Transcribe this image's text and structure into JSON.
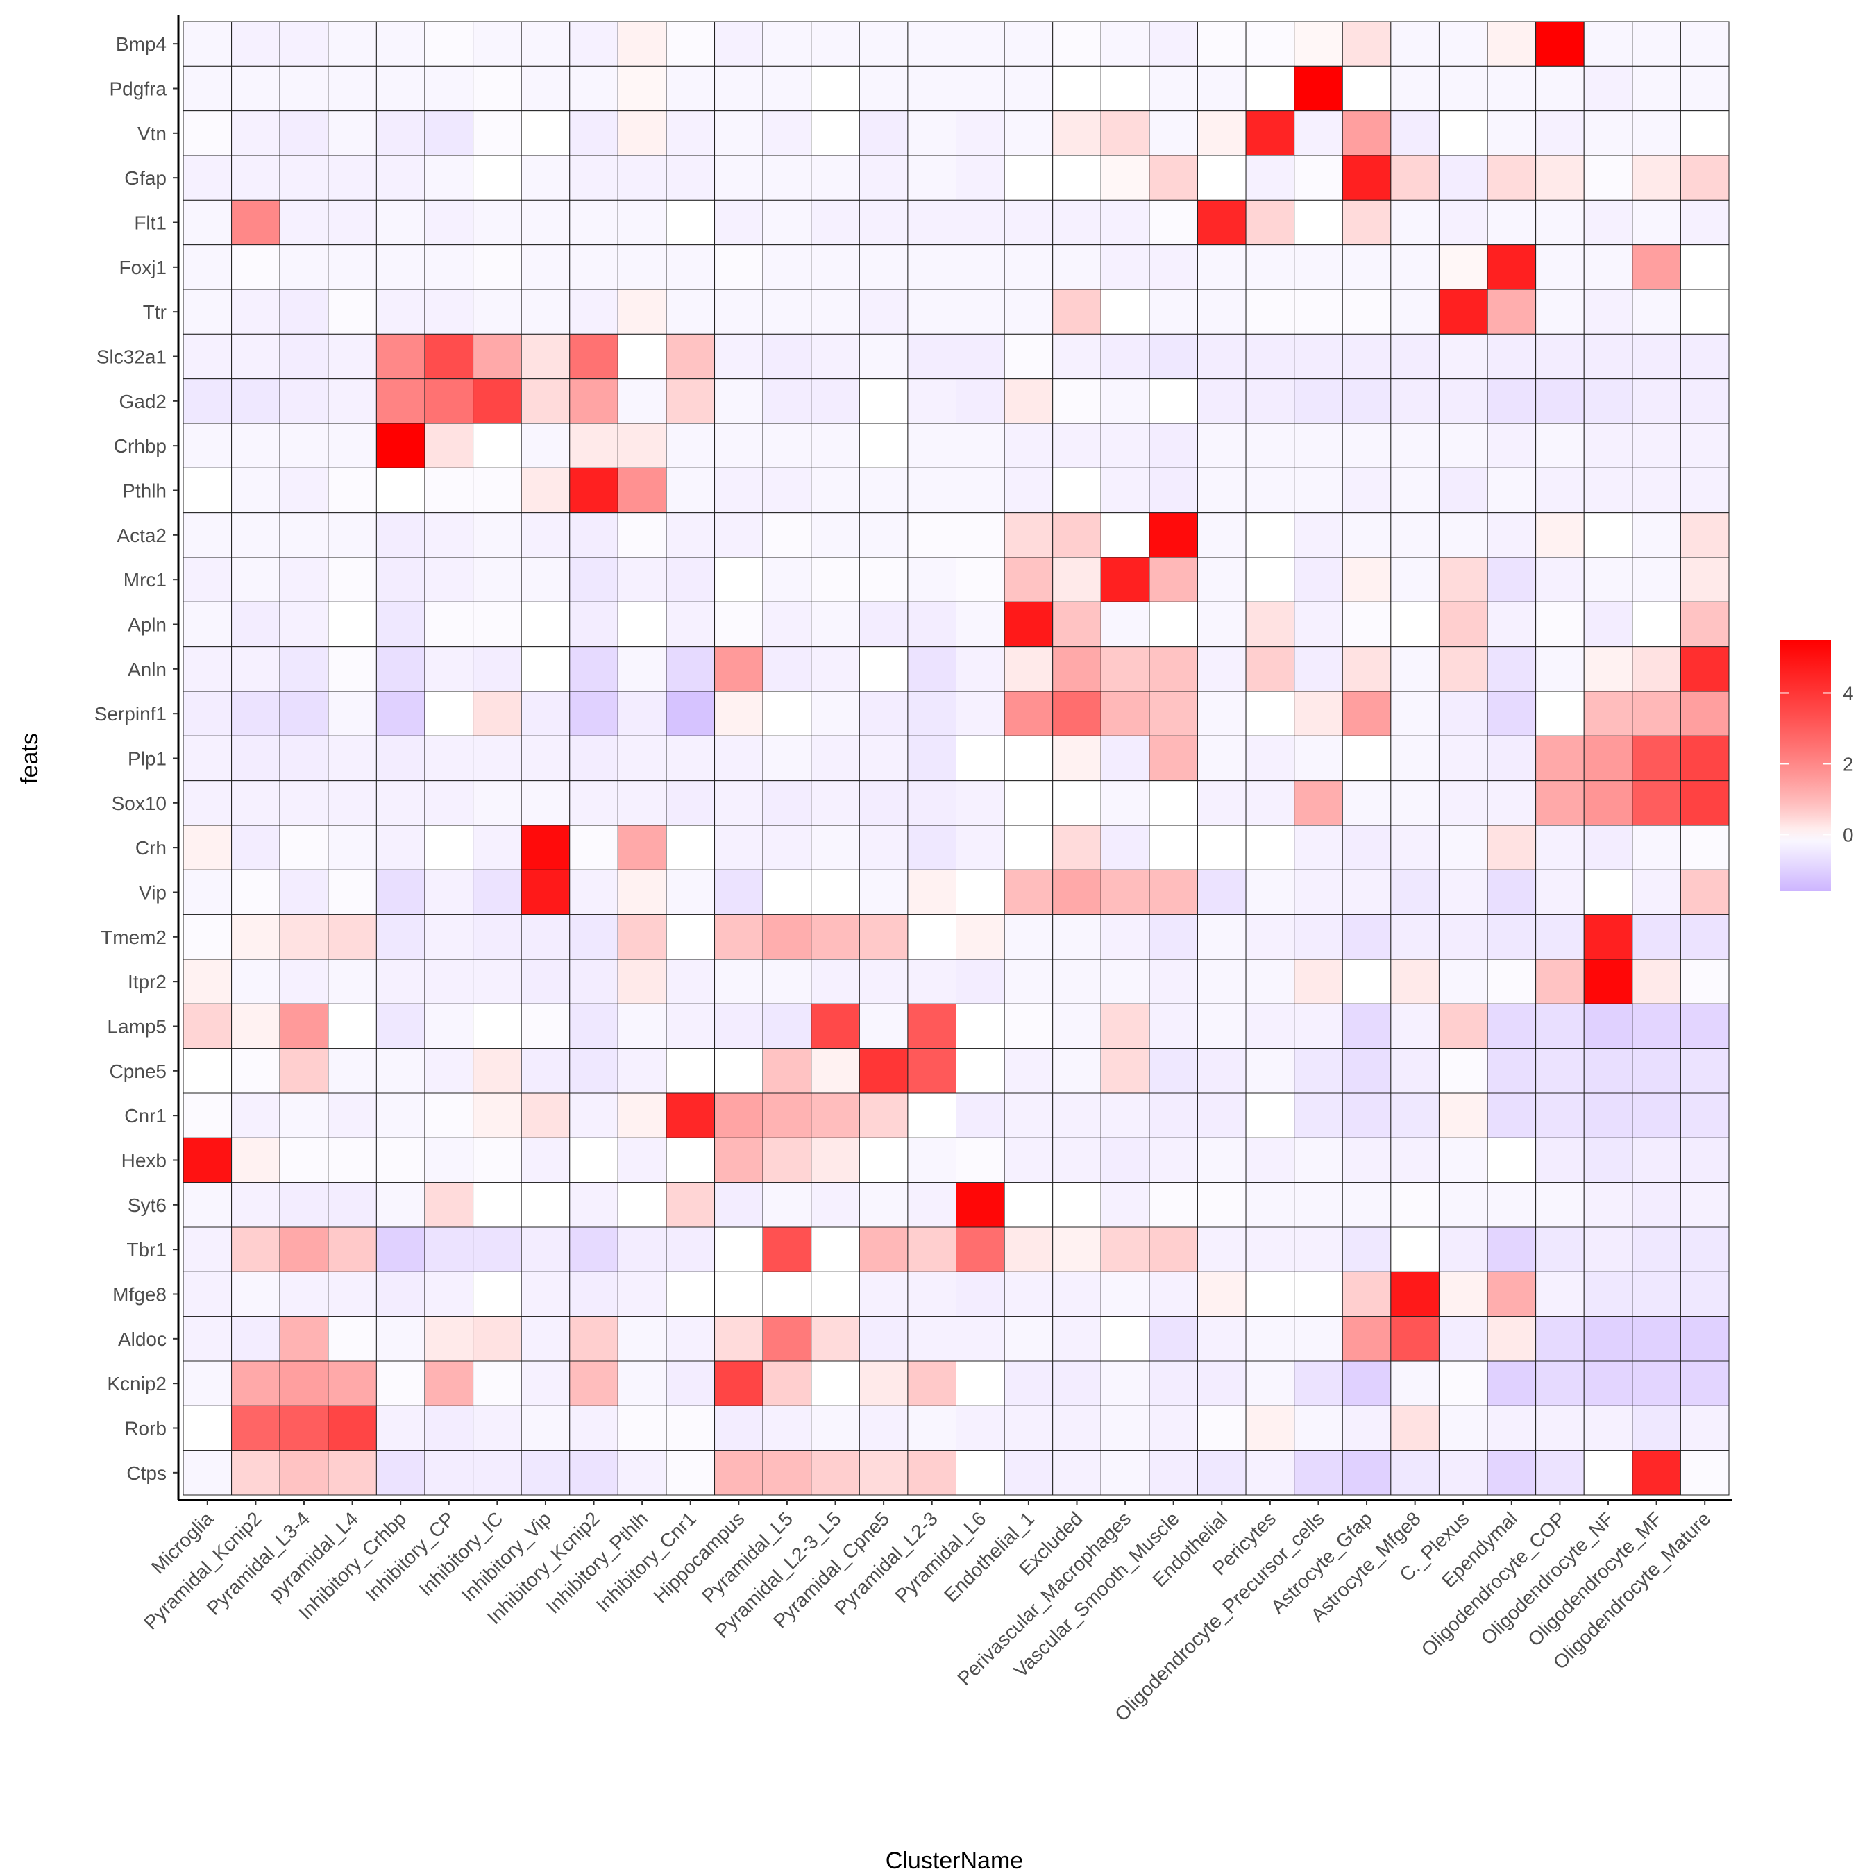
{
  "chart_data": {
    "type": "heatmap",
    "xlabel": "ClusterName",
    "ylabel": "feats",
    "colorbar": {
      "ticks": [
        0,
        2,
        4
      ],
      "range": [
        -1.6,
        5.5
      ],
      "low_color": "#CDB5FF",
      "mid_color": "#FFFFFF",
      "high_color": "#FF0000"
    },
    "x": [
      "Microglia",
      "Pyramidal_Kcnip2",
      "Pyramidal_L3-4",
      "pyramidal_L4",
      "Inhibitory_Crhbp",
      "Inhibitory_CP",
      "Inhibitory_IC",
      "Inhibitory_Vip",
      "Inhibitory_Kcnip2",
      "Inhibitory_Pthlh",
      "Inhibitory_Cnr1",
      "Hippocampus",
      "Pyramidal_L5",
      "Pyramidal_L2-3_L5",
      "Pyramidal_Cpne5",
      "Pyramidal_L2-3",
      "Pyramidal_L6",
      "Endothelial_1",
      "Excluded",
      "Perivascular_Macrophages",
      "Vascular_Smooth_Muscle",
      "Endothelial",
      "Pericytes",
      "Oligodendrocyte_Precursor_cells",
      "Astrocyte_Gfap",
      "Astrocyte_Mfge8",
      "C._Plexus",
      "Ependymal",
      "Oligodendrocyte_COP",
      "Oligodendrocyte_NF",
      "Oligodendrocyte_MF",
      "Oligodendrocyte_Mature"
    ],
    "y": [
      "Bmp4",
      "Pdgfra",
      "Vtn",
      "Gfap",
      "Flt1",
      "Foxj1",
      "Ttr",
      "Slc32a1",
      "Gad2",
      "Crhbp",
      "Pthlh",
      "Acta2",
      "Mrc1",
      "Apln",
      "Anln",
      "Serpinf1",
      "Plp1",
      "Sox10",
      "Crh",
      "Vip",
      "Tmem2",
      "Itpr2",
      "Lamp5",
      "Cpne5",
      "Cnr1",
      "Hexb",
      "Syt6",
      "Tbr1",
      "Mfge8",
      "Aldoc",
      "Kcnip2",
      "Rorb",
      "Ctps"
    ],
    "values": [
      [
        -0.2,
        -0.3,
        -0.3,
        -0.2,
        -0.2,
        -0.1,
        -0.2,
        -0.2,
        -0.3,
        0.1,
        -0.1,
        -0.3,
        -0.2,
        -0.2,
        -0.2,
        -0.2,
        -0.2,
        -0.2,
        -0.1,
        -0.2,
        -0.3,
        -0.1,
        -0.1,
        0.05,
        0.3,
        -0.2,
        -0.2,
        0.1,
        5.5,
        -0.2,
        -0.2,
        -0.2
      ],
      [
        -0.2,
        -0.2,
        -0.2,
        -0.2,
        -0.2,
        -0.2,
        -0.1,
        -0.2,
        -0.2,
        0.05,
        -0.2,
        -0.2,
        -0.2,
        0,
        -0.2,
        -0.2,
        -0.2,
        -0.2,
        0,
        0,
        -0.2,
        -0.2,
        0,
        5.5,
        0,
        -0.2,
        -0.2,
        -0.2,
        -0.2,
        -0.3,
        -0.2,
        -0.2
      ],
      [
        -0.1,
        -0.3,
        -0.4,
        -0.2,
        -0.4,
        -0.5,
        -0.1,
        0,
        -0.4,
        0.1,
        -0.3,
        -0.2,
        -0.3,
        0,
        -0.4,
        -0.2,
        -0.3,
        -0.2,
        0.2,
        0.4,
        -0.2,
        0.1,
        4.5,
        -0.3,
        1.5,
        -0.4,
        0,
        -0.2,
        -0.3,
        -0.2,
        -0.2,
        0
      ],
      [
        -0.3,
        -0.3,
        -0.3,
        -0.3,
        -0.3,
        -0.2,
        0,
        -0.2,
        -0.3,
        -0.3,
        -0.3,
        -0.2,
        -0.2,
        -0.2,
        -0.3,
        -0.2,
        -0.3,
        0,
        0,
        0.05,
        0.5,
        0,
        -0.3,
        -0.1,
        4.6,
        0.5,
        -0.4,
        0.4,
        0.2,
        -0.1,
        0.2,
        0.5
      ],
      [
        -0.2,
        2.0,
        -0.3,
        -0.3,
        -0.2,
        -0.3,
        -0.2,
        -0.2,
        -0.2,
        -0.2,
        0,
        -0.3,
        -0.2,
        -0.3,
        -0.3,
        -0.3,
        -0.3,
        -0.3,
        -0.3,
        -0.3,
        -0.1,
        4.4,
        0.5,
        0,
        0.4,
        -0.2,
        -0.3,
        -0.2,
        -0.2,
        -0.3,
        -0.2,
        -0.3
      ],
      [
        -0.2,
        -0.1,
        -0.2,
        -0.2,
        -0.2,
        -0.2,
        -0.1,
        -0.2,
        -0.2,
        -0.2,
        -0.2,
        -0.1,
        -0.2,
        -0.2,
        -0.2,
        -0.2,
        -0.2,
        -0.2,
        -0.2,
        -0.3,
        -0.3,
        -0.2,
        -0.2,
        -0.2,
        -0.2,
        -0.2,
        0.05,
        4.6,
        -0.2,
        -0.2,
        1.5,
        0
      ],
      [
        -0.2,
        -0.3,
        -0.4,
        -0.1,
        -0.3,
        -0.3,
        -0.2,
        -0.2,
        -0.3,
        0.1,
        -0.2,
        -0.2,
        -0.2,
        -0.2,
        -0.3,
        -0.2,
        -0.2,
        -0.2,
        0.6,
        0,
        -0.2,
        -0.2,
        -0.1,
        -0.1,
        -0.1,
        -0.2,
        4.6,
        1.2,
        -0.2,
        -0.3,
        -0.2,
        0
      ],
      [
        -0.3,
        -0.3,
        -0.4,
        -0.3,
        2.0,
        3.4,
        1.3,
        0.3,
        2.5,
        0,
        0.8,
        -0.3,
        -0.4,
        -0.3,
        -0.2,
        -0.4,
        -0.4,
        -0.1,
        -0.3,
        -0.4,
        -0.5,
        -0.4,
        -0.4,
        -0.4,
        -0.4,
        -0.4,
        -0.3,
        -0.4,
        -0.4,
        -0.4,
        -0.4,
        -0.4
      ],
      [
        -0.5,
        -0.5,
        -0.4,
        -0.3,
        2.1,
        2.5,
        3.6,
        0.4,
        1.4,
        -0.2,
        0.5,
        -0.2,
        -0.4,
        -0.4,
        0,
        -0.3,
        -0.4,
        0.2,
        -0.1,
        -0.2,
        0,
        -0.4,
        -0.4,
        -0.5,
        -0.5,
        -0.4,
        -0.4,
        -0.6,
        -0.6,
        -0.5,
        -0.4,
        -0.4
      ],
      [
        -0.2,
        -0.2,
        -0.2,
        -0.2,
        5.5,
        0.3,
        0,
        -0.2,
        0.2,
        0.2,
        -0.2,
        -0.2,
        -0.2,
        -0.2,
        0,
        -0.2,
        -0.2,
        -0.3,
        -0.3,
        -0.3,
        -0.4,
        -0.2,
        -0.2,
        -0.2,
        -0.2,
        -0.2,
        -0.2,
        -0.3,
        -0.2,
        -0.3,
        -0.3,
        -0.3
      ],
      [
        0,
        -0.2,
        -0.3,
        -0.1,
        0,
        -0.1,
        -0.1,
        0.2,
        4.6,
        1.8,
        -0.2,
        -0.3,
        -0.3,
        -0.2,
        -0.2,
        -0.2,
        -0.2,
        -0.3,
        0,
        -0.3,
        -0.4,
        -0.2,
        -0.2,
        -0.2,
        -0.3,
        -0.2,
        -0.4,
        -0.2,
        -0.3,
        -0.3,
        -0.3,
        -0.3
      ],
      [
        -0.2,
        -0.2,
        -0.2,
        -0.2,
        -0.4,
        -0.3,
        -0.2,
        -0.3,
        -0.4,
        -0.1,
        -0.3,
        -0.3,
        -0.1,
        -0.2,
        -0.2,
        -0.1,
        -0.1,
        0.4,
        0.6,
        0,
        5.2,
        -0.2,
        0,
        -0.3,
        -0.2,
        -0.2,
        -0.2,
        -0.3,
        0.1,
        0,
        -0.2,
        0.3
      ],
      [
        -0.3,
        -0.2,
        -0.3,
        -0.1,
        -0.4,
        -0.3,
        -0.2,
        -0.2,
        -0.5,
        -0.3,
        -0.4,
        0,
        -0.2,
        -0.1,
        -0.1,
        -0.2,
        -0.1,
        0.8,
        0.2,
        4.6,
        1.0,
        -0.2,
        0,
        -0.4,
        0.1,
        -0.2,
        0.4,
        -0.6,
        -0.3,
        -0.2,
        -0.2,
        0.2
      ],
      [
        -0.2,
        -0.4,
        -0.3,
        0,
        -0.5,
        -0.1,
        -0.1,
        0,
        -0.4,
        0,
        -0.3,
        -0.1,
        -0.3,
        -0.2,
        -0.4,
        -0.4,
        -0.2,
        4.8,
        0.8,
        -0.2,
        0,
        -0.2,
        0.3,
        -0.3,
        -0.1,
        0,
        0.6,
        -0.3,
        -0.1,
        -0.4,
        0,
        0.8
      ],
      [
        -0.3,
        -0.3,
        -0.5,
        -0.1,
        -0.7,
        -0.3,
        -0.4,
        0,
        -0.8,
        -0.2,
        -0.8,
        1.6,
        -0.4,
        -0.3,
        0,
        -0.6,
        -0.3,
        0.2,
        1.3,
        0.7,
        0.8,
        -0.3,
        0.6,
        -0.4,
        0.3,
        -0.2,
        0.4,
        -0.6,
        -0.2,
        0.1,
        0.3,
        4.2
      ],
      [
        -0.4,
        -0.6,
        -0.7,
        -0.2,
        -1.0,
        0,
        0.3,
        -0.4,
        -1.0,
        -0.4,
        -1.3,
        0.1,
        0,
        -0.2,
        -0.4,
        -0.5,
        -0.3,
        1.8,
        2.6,
        1.0,
        0.8,
        -0.2,
        0,
        0.2,
        1.5,
        -0.2,
        -0.4,
        -0.8,
        0,
        0.9,
        1.0,
        1.5
      ],
      [
        -0.3,
        -0.4,
        -0.4,
        -0.3,
        -0.4,
        -0.3,
        -0.3,
        -0.3,
        -0.4,
        -0.3,
        -0.3,
        -0.3,
        -0.2,
        -0.3,
        -0.3,
        -0.5,
        0,
        0,
        0.1,
        -0.4,
        1.0,
        -0.2,
        -0.3,
        -0.2,
        0,
        -0.2,
        -0.3,
        -0.4,
        1.3,
        1.6,
        3.1,
        3.6
      ],
      [
        -0.3,
        -0.3,
        -0.3,
        -0.3,
        -0.3,
        -0.3,
        -0.2,
        -0.2,
        -0.3,
        -0.3,
        -0.4,
        -0.3,
        -0.4,
        -0.3,
        -0.4,
        -0.4,
        -0.3,
        0,
        0,
        -0.2,
        0,
        -0.3,
        -0.3,
        1.2,
        -0.2,
        -0.2,
        -0.3,
        -0.3,
        1.3,
        1.7,
        3.0,
        3.7
      ],
      [
        0.1,
        -0.4,
        -0.1,
        -0.2,
        -0.3,
        0,
        -0.3,
        5.2,
        -0.1,
        1.3,
        0,
        -0.3,
        -0.3,
        -0.2,
        -0.3,
        -0.5,
        -0.3,
        0,
        0.4,
        -0.4,
        0,
        0,
        0,
        -0.3,
        -0.4,
        -0.3,
        -0.2,
        0.3,
        -0.3,
        -0.4,
        -0.2,
        -0.1
      ],
      [
        -0.2,
        -0.1,
        -0.4,
        -0.1,
        -0.7,
        -0.3,
        -0.6,
        4.8,
        -0.3,
        0.1,
        -0.2,
        -0.6,
        0,
        0,
        -0.2,
        0.1,
        0,
        0.9,
        1.3,
        0.9,
        0.9,
        -0.6,
        -0.2,
        -0.3,
        -0.3,
        -0.5,
        -0.3,
        -0.7,
        -0.3,
        0,
        -0.3,
        0.7
      ],
      [
        -0.1,
        0.1,
        0.3,
        0.4,
        -0.5,
        -0.3,
        -0.4,
        -0.4,
        -0.5,
        0.6,
        0,
        0.8,
        1.2,
        0.9,
        0.7,
        0,
        0.1,
        -0.2,
        -0.2,
        -0.3,
        -0.5,
        -0.2,
        -0.3,
        -0.4,
        -0.6,
        -0.4,
        -0.4,
        -0.5,
        -0.5,
        4.6,
        -0.6,
        -0.6
      ],
      [
        0.1,
        -0.2,
        -0.3,
        -0.2,
        -0.3,
        -0.3,
        -0.3,
        -0.4,
        -0.4,
        0.2,
        -0.3,
        -0.2,
        -0.2,
        -0.3,
        -0.3,
        -0.3,
        -0.4,
        -0.2,
        -0.2,
        -0.2,
        -0.3,
        -0.2,
        -0.2,
        0.2,
        0,
        0.2,
        -0.2,
        -0.1,
        0.8,
        5.3,
        0.2,
        -0.1
      ],
      [
        0.5,
        0.1,
        1.6,
        0,
        -0.5,
        -0.2,
        0,
        -0.1,
        -0.5,
        -0.2,
        -0.3,
        -0.4,
        -0.5,
        3.5,
        -0.2,
        3.1,
        0,
        -0.1,
        -0.2,
        0.4,
        -0.3,
        -0.2,
        -0.3,
        -0.3,
        -0.8,
        -0.3,
        0.6,
        -0.8,
        -0.7,
        -1.0,
        -0.9,
        -0.9
      ],
      [
        0,
        -0.1,
        0.6,
        -0.2,
        -0.2,
        -0.3,
        0.2,
        -0.4,
        -0.5,
        -0.3,
        0,
        0,
        0.8,
        0.1,
        4.0,
        3.1,
        0,
        -0.3,
        -0.2,
        0.4,
        -0.5,
        -0.4,
        -0.2,
        -0.5,
        -0.7,
        -0.4,
        -0.1,
        -0.7,
        -0.6,
        -0.7,
        -0.7,
        -0.6
      ],
      [
        -0.1,
        -0.3,
        -0.2,
        -0.3,
        -0.2,
        -0.1,
        0.1,
        0.3,
        -0.3,
        0.1,
        4.4,
        1.4,
        1.1,
        0.9,
        0.5,
        0,
        -0.4,
        -0.3,
        -0.3,
        -0.3,
        -0.4,
        -0.4,
        0,
        -0.5,
        -0.6,
        -0.5,
        0.1,
        -0.7,
        -0.6,
        -0.7,
        -0.7,
        -0.6
      ],
      [
        5.0,
        0.1,
        -0.1,
        -0.1,
        -0.1,
        -0.2,
        -0.1,
        -0.3,
        0,
        -0.3,
        0,
        1.0,
        0.5,
        0.2,
        0,
        -0.2,
        -0.1,
        -0.3,
        -0.3,
        -0.4,
        -0.3,
        -0.2,
        -0.3,
        -0.2,
        -0.3,
        -0.3,
        -0.2,
        0,
        -0.4,
        -0.5,
        -0.4,
        -0.4
      ],
      [
        -0.2,
        -0.3,
        -0.4,
        -0.4,
        -0.2,
        0.4,
        0,
        0,
        -0.3,
        0,
        0.5,
        -0.4,
        -0.2,
        -0.3,
        -0.2,
        -0.3,
        5.3,
        0,
        0,
        -0.3,
        -0.1,
        -0.1,
        -0.2,
        -0.2,
        -0.2,
        -0.1,
        -0.2,
        -0.2,
        -0.2,
        -0.3,
        -0.4,
        -0.3
      ],
      [
        -0.3,
        0.6,
        1.3,
        0.7,
        -1.0,
        -0.6,
        -0.6,
        -0.4,
        -0.8,
        -0.4,
        -0.4,
        0,
        3.3,
        0,
        1.0,
        0.6,
        2.6,
        0.2,
        0.1,
        0.5,
        0.6,
        -0.3,
        -0.3,
        -0.3,
        -0.5,
        0,
        -0.4,
        -0.9,
        -0.5,
        -0.4,
        -0.5,
        -0.5
      ],
      [
        -0.3,
        -0.2,
        -0.3,
        -0.3,
        -0.4,
        -0.3,
        0,
        -0.3,
        -0.4,
        -0.3,
        0,
        0,
        0,
        0,
        -0.3,
        -0.3,
        -0.4,
        -0.3,
        -0.3,
        -0.2,
        -0.3,
        0.1,
        0,
        0,
        0.6,
        4.8,
        0.1,
        1.2,
        -0.3,
        -0.5,
        -0.5,
        -0.5
      ],
      [
        -0.3,
        -0.4,
        1.1,
        -0.1,
        -0.2,
        0.2,
        0.3,
        -0.3,
        0.6,
        -0.2,
        -0.3,
        0.4,
        2.3,
        0.4,
        -0.4,
        -0.3,
        -0.3,
        -0.2,
        -0.3,
        0,
        -0.6,
        -0.3,
        -0.2,
        -0.2,
        1.6,
        3.2,
        -0.4,
        0.2,
        -0.8,
        -1.0,
        -1.0,
        -1.0
      ],
      [
        -0.2,
        1.3,
        1.5,
        1.3,
        -0.1,
        1.1,
        -0.1,
        -0.3,
        0.9,
        -0.2,
        -0.4,
        3.6,
        0.6,
        0,
        0.2,
        0.7,
        0,
        -0.4,
        -0.4,
        -0.2,
        -0.4,
        -0.4,
        -0.2,
        -0.6,
        -1.0,
        -0.2,
        -0.1,
        -1.0,
        -0.8,
        -0.9,
        -0.9,
        -0.9
      ],
      [
        0,
        2.8,
        3.0,
        3.6,
        -0.3,
        -0.4,
        -0.3,
        -0.2,
        -0.3,
        -0.1,
        -0.1,
        -0.4,
        -0.3,
        -0.2,
        -0.3,
        -0.2,
        -0.3,
        -0.3,
        -0.3,
        -0.2,
        -0.3,
        -0.1,
        0.1,
        -0.2,
        -0.3,
        0.3,
        -0.2,
        -0.3,
        -0.3,
        -0.3,
        -0.5,
        -0.3
      ],
      [
        -0.2,
        0.5,
        0.8,
        0.6,
        -0.6,
        -0.4,
        -0.4,
        -0.5,
        -0.6,
        -0.3,
        -0.1,
        1.0,
        0.9,
        0.6,
        0.4,
        0.6,
        0,
        -0.4,
        -0.3,
        -0.2,
        -0.4,
        -0.5,
        -0.3,
        -0.8,
        -1.0,
        -0.5,
        -0.4,
        -0.9,
        -0.6,
        0,
        4.4,
        -0.1
      ]
    ]
  }
}
